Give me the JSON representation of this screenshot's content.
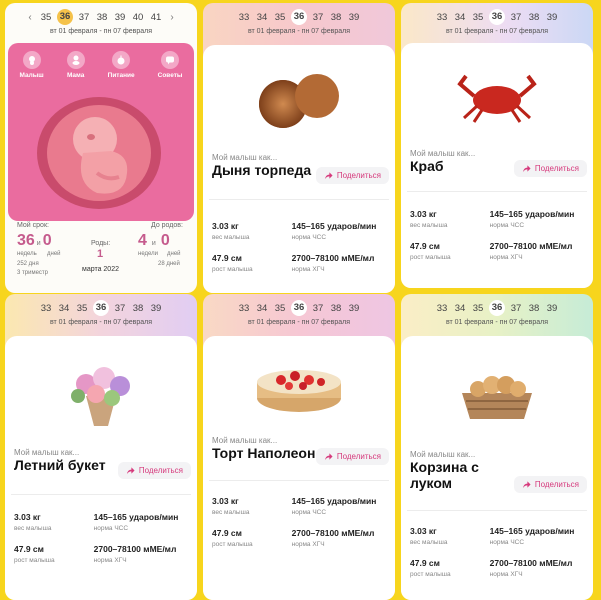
{
  "shared": {
    "weeks_full": [
      "35",
      "36",
      "37",
      "38",
      "39",
      "40",
      "41"
    ],
    "weeks_partial": [
      "33",
      "34",
      "35",
      "36",
      "37",
      "38",
      "39"
    ],
    "current_week": "36",
    "date_range": "вт 01 февраля - пн 07 февраля",
    "my_baby_like": "Мой малыш как...",
    "share_label": "Поделиться",
    "weight_value": "3.03 кг",
    "weight_label": "вес малыша",
    "height_value": "47.9 см",
    "height_label": "рост малыша",
    "hr_value": "145–165 ударов/мин",
    "hr_label": "норма ЧСС",
    "hcg_value": "2700–78100 мМЕ/мл",
    "hcg_label": "норма ХГЧ"
  },
  "card1": {
    "nav": [
      "Малыш",
      "Мама",
      "Питание",
      "Советы"
    ],
    "term_label": "Мой срок:",
    "weeks_num": "36",
    "and": "и",
    "days_num": "0",
    "weeks_unit": "недель",
    "days_unit": "дней",
    "trimester_days": "252 дня",
    "trimester": "3 триместр",
    "birth_label": "Роды:",
    "birth_day": "1",
    "birth_month": "марта 2022",
    "until_label": "До родов:",
    "until_weeks": "4",
    "until_days": "0",
    "until_weeks_unit": "недели",
    "until_days_unit": "дней",
    "until_total": "28 дней"
  },
  "items": {
    "c2": "Дыня торпеда",
    "c3": "Краб",
    "c4": "Летний букет",
    "c5": "Торт Наполеон",
    "c6_line1": "Корзина с",
    "c6_line2": "луком"
  },
  "colors": {
    "accent": "#d6397c",
    "panel": "#ea6c9f",
    "background": "#f7d51d"
  }
}
